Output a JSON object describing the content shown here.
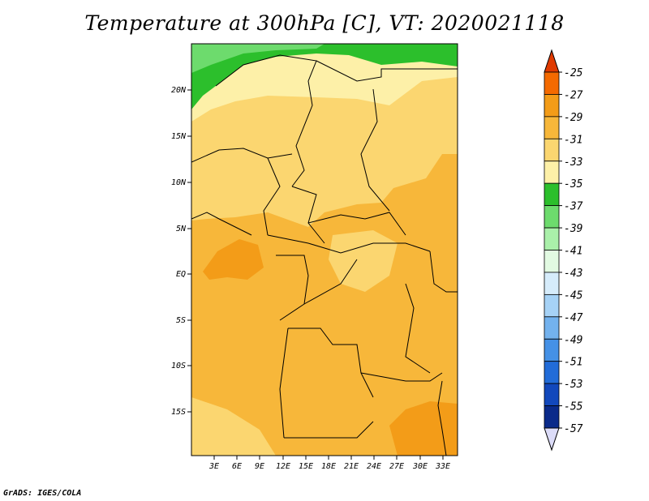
{
  "title": "Temperature at 300hPa [C], VT: 2020021118",
  "footer": "GrADS: IGES/COLA",
  "map": {
    "lat_labels": [
      "20N",
      "15N",
      "10N",
      "5N",
      "EQ",
      "5S",
      "10S",
      "15S"
    ],
    "lon_labels": [
      "3E",
      "6E",
      "9E",
      "12E",
      "15E",
      "18E",
      "21E",
      "24E",
      "27E",
      "30E",
      "33E"
    ]
  },
  "legend": {
    "labels": [
      "-25",
      "-27",
      "-29",
      "-31",
      "-33",
      "-35",
      "-37",
      "-39",
      "-41",
      "-43",
      "-45",
      "-47",
      "-49",
      "-51",
      "-53",
      "-55",
      "-57"
    ],
    "colors": [
      "#e03a00",
      "#f46a00",
      "#f39c18",
      "#f7b73a",
      "#fbd670",
      "#fdf0a8",
      "#2cbf2c",
      "#6ddb6d",
      "#aaf0aa",
      "#e2fae2",
      "#d6ecfb",
      "#a6d2f6",
      "#73b2ee",
      "#4591e6",
      "#226cd8",
      "#1248bc",
      "#0a2a8a",
      "#061462"
    ]
  }
}
